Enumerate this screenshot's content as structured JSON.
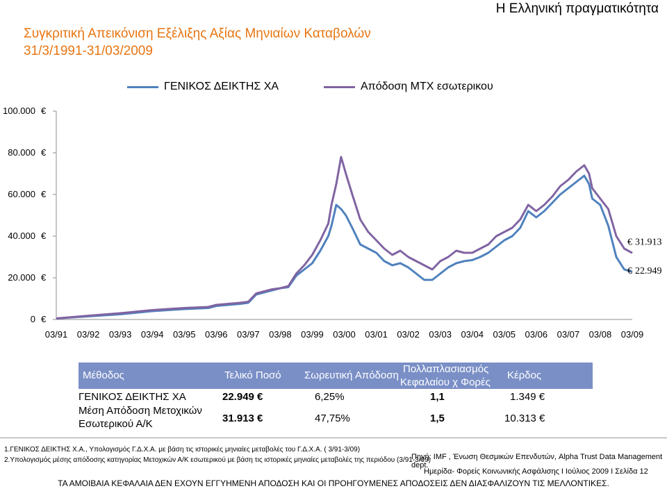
{
  "header": {
    "top_right": "Η Ελληνική πραγματικότητα",
    "title_line1": "Συγκριτική Απεικόνιση Εξέλιξης Αξίας Μηνιαίων Καταβολών",
    "title_line2": "31/3/1991-31/03/2009"
  },
  "colors": {
    "series_index": "#4f81bd",
    "series_mfunds": "#8064a2",
    "title": "#e87511",
    "table_header": "#7a8fc6"
  },
  "chart_data": {
    "type": "line",
    "title": "",
    "xlabel": "",
    "ylabel": "",
    "y_ticks": [
      "0",
      "20.000",
      "40.000",
      "60.000",
      "80.000",
      "100.000"
    ],
    "ylim": [
      0,
      100000
    ],
    "x_ticks": [
      "03/91",
      "03/92",
      "03/93",
      "03/94",
      "03/95",
      "03/96",
      "03/97",
      "03/98",
      "03/99",
      "03/00",
      "03/01",
      "03/02",
      "03/03",
      "03/04",
      "03/05",
      "03/06",
      "03/07",
      "03/08",
      "03/09"
    ],
    "legend_position": "top",
    "grid": false,
    "end_labels": [
      "31.913",
      "22.949"
    ],
    "x": [
      1991.25,
      1992.25,
      1993.25,
      1994.25,
      1995.25,
      1996.0,
      1996.25,
      1997.0,
      1997.25,
      1997.5,
      1998.0,
      1998.25,
      1998.5,
      1998.75,
      1999.0,
      1999.25,
      1999.5,
      1999.75,
      1999.85,
      2000.0,
      2000.15,
      2000.3,
      2000.5,
      2000.75,
      2001.0,
      2001.25,
      2001.5,
      2001.75,
      2002.0,
      2002.25,
      2002.5,
      2002.75,
      2003.0,
      2003.25,
      2003.5,
      2003.75,
      2004.0,
      2004.25,
      2004.5,
      2004.75,
      2005.0,
      2005.25,
      2005.5,
      2005.75,
      2006.0,
      2006.25,
      2006.5,
      2006.75,
      2007.0,
      2007.25,
      2007.5,
      2007.75,
      2007.9,
      2008.0,
      2008.25,
      2008.5,
      2008.75,
      2009.0,
      2009.25
    ],
    "series": [
      {
        "name": "ΓΕΝΙΚΟΣ ΔΕΙΚΤΗΣ ΧΑ",
        "values": [
          500,
          1500,
          2500,
          4000,
          5000,
          5500,
          6500,
          7500,
          8000,
          12000,
          14000,
          15000,
          15500,
          21000,
          24000,
          27000,
          33000,
          40000,
          45000,
          55000,
          53000,
          50000,
          44000,
          36000,
          34000,
          32000,
          28000,
          26000,
          27000,
          25000,
          22000,
          19000,
          19000,
          22000,
          25000,
          27000,
          28000,
          28500,
          30000,
          32000,
          35000,
          38000,
          40000,
          44000,
          52000,
          49000,
          52000,
          56000,
          60000,
          63000,
          66000,
          69000,
          65000,
          58000,
          55000,
          45000,
          30000,
          24000,
          22949
        ]
      },
      {
        "name": "Απόδοση ΜΤΧ εσωτερικου",
        "values": [
          500,
          1800,
          3000,
          4500,
          5500,
          6000,
          7000,
          8000,
          8500,
          12500,
          14500,
          15000,
          16000,
          22000,
          26000,
          31000,
          38000,
          46000,
          55000,
          65000,
          78000,
          70000,
          60000,
          48000,
          42000,
          38000,
          34000,
          31000,
          33000,
          30000,
          28000,
          26000,
          24000,
          28000,
          30000,
          33000,
          32000,
          32000,
          34000,
          36000,
          40000,
          42000,
          44000,
          48000,
          55000,
          52000,
          55000,
          59000,
          64000,
          67000,
          71000,
          74000,
          70000,
          63000,
          58000,
          53000,
          40000,
          34000,
          31913
        ]
      }
    ]
  },
  "table": {
    "headers": {
      "method": "Μέθοδος",
      "final": "Τελικό Ποσό",
      "cumulative": "Σωρευτική Απόδοση",
      "multiplier_line1": "Πολλαπλασιασμός",
      "multiplier_line2": "Κεφαλαίου χ Φορές",
      "profit": "Κέρδος"
    },
    "rows": [
      {
        "method_line1": "ΓΕΝΙΚΟΣ ΔΕΙΚΤΗΣ ΧΑ",
        "method_line2": "",
        "final": "22.949 ",
        "cumulative": "6,25%",
        "multiplier": "1,1",
        "profit": "1.349 "
      },
      {
        "method_line1": "Μέση Απόδοση Μετοχικών",
        "method_line2": "Εσωτερικού Α/Κ",
        "final": "31.913 ",
        "cumulative": "47,75%",
        "multiplier": "1,5",
        "profit": "10.313 "
      }
    ]
  },
  "footer": {
    "note1": "1.ΓΕΝΙΚΟΣ ΔΕΙΚΤΗΣ Χ.Α., Υπολογισμός Γ.Δ.Χ.Α. με βάση τις ιστορικές μηνιαίες μεταβολές του Γ.Δ.Χ.Α. ( 3/91-3/09)",
    "note2": "2.Υπολογισμός μέσης απόδοσης κατηγορίας Μετοχικών Α/Κ εσωτερικού με βάση τις ιστορικές μηνιαίες μεταβολές της περιόδου (3/91-3/09)",
    "source": "Πηγή: IMF , Ένωση Θεσμικών Επενδυτών, Alpha Trust Data Management dept.",
    "event": "Ημερίδα- Φορείς Κοινωνικής Ασφάλισης  Ι Ιούλιος 2009 Ι Σελίδα  12",
    "disclaimer": "ΤΑ ΑΜΟΙΒΑΙΑ ΚΕΦΑΛΑΙΑ ΔΕΝ ΕΧΟΥΝ ΕΓΓΥΗΜΕΝΗ ΑΠΟΔΟΣΗ ΚΑΙ ΟΙ ΠΡΟΗΓΟΥΜΕΝΕΣ ΑΠΟΔΟΣΕΙΣ ΔΕΝ ΔΙΑΣΦΑΛΙΖΟΥΝ ΤΙΣ ΜΕΛΛΟΝΤΙΚΕΣ."
  }
}
